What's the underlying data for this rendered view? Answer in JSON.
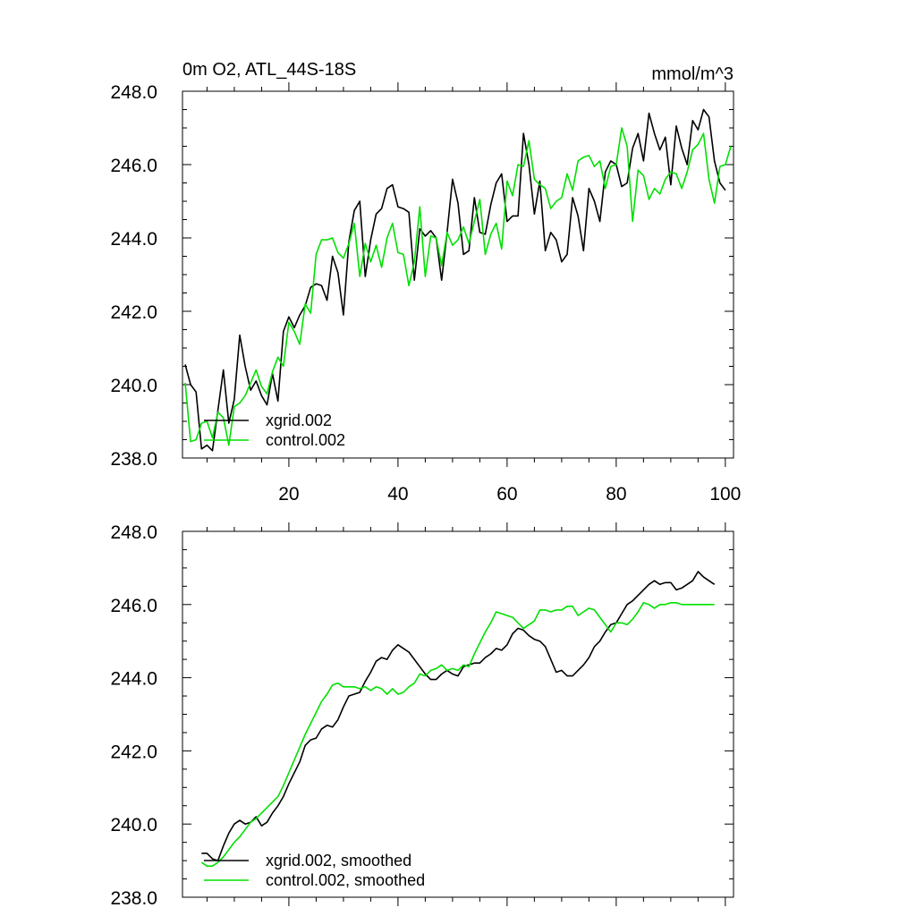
{
  "chart_data": [
    {
      "type": "line",
      "title_left": "0m O2, ATL_44S-18S",
      "title_right": "mmol/m^3",
      "xlim": [
        0.5,
        101.5
      ],
      "ylim": [
        238.0,
        248.0
      ],
      "x_ticks": [
        20,
        40,
        60,
        80,
        100
      ],
      "x_tick_labels": [
        "20",
        "40",
        "60",
        "80",
        "100"
      ],
      "y_ticks": [
        238.0,
        240.0,
        242.0,
        244.0,
        246.0,
        248.0
      ],
      "y_tick_labels": [
        "238.0",
        "240.0",
        "242.0",
        "244.0",
        "246.0",
        "248.0"
      ],
      "legend_position": "bottom-left",
      "series": [
        {
          "name": "xgrid.002",
          "color": "#000000",
          "x_start": 1,
          "values": [
            240.55,
            240.0,
            239.8,
            238.25,
            238.35,
            238.2,
            239.3,
            240.4,
            238.95,
            239.6,
            241.35,
            240.5,
            239.85,
            240.1,
            239.7,
            239.45,
            240.3,
            239.55,
            241.45,
            241.85,
            241.55,
            241.9,
            242.15,
            242.65,
            242.75,
            242.7,
            242.3,
            243.5,
            243.05,
            241.9,
            243.9,
            244.75,
            245.0,
            242.95,
            243.95,
            244.65,
            244.8,
            245.35,
            245.45,
            244.85,
            244.8,
            244.7,
            242.85,
            244.25,
            244.05,
            244.2,
            244.0,
            242.85,
            244.15,
            245.6,
            244.95,
            243.55,
            243.65,
            245.1,
            244.15,
            244.1,
            244.9,
            245.5,
            245.75,
            244.45,
            244.6,
            244.6,
            246.85,
            246.0,
            244.65,
            245.55,
            243.65,
            244.15,
            243.95,
            243.35,
            243.55,
            245.1,
            244.6,
            243.65,
            245.35,
            245.0,
            244.45,
            245.8,
            246.1,
            246.0,
            245.4,
            245.5,
            246.45,
            246.85,
            246.1,
            247.4,
            246.85,
            246.4,
            246.75,
            245.45,
            247.05,
            246.45,
            246.0,
            247.2,
            246.95,
            247.5,
            247.3,
            246.1,
            245.5,
            245.3
          ]
        },
        {
          "name": "control.002",
          "color": "#00e000",
          "x_start": 1,
          "values": [
            240.05,
            238.45,
            238.5,
            238.95,
            239.0,
            238.55,
            239.25,
            239.1,
            238.35,
            239.4,
            239.5,
            239.7,
            240.05,
            240.4,
            239.95,
            239.75,
            240.35,
            240.75,
            240.5,
            241.7,
            241.45,
            241.1,
            242.2,
            241.95,
            243.55,
            243.95,
            243.95,
            244.0,
            243.6,
            243.45,
            243.85,
            244.4,
            242.95,
            243.85,
            243.35,
            243.8,
            243.2,
            244.0,
            244.4,
            243.6,
            243.55,
            242.7,
            243.35,
            244.85,
            242.95,
            244.05,
            244.0,
            243.25,
            244.15,
            243.8,
            243.95,
            244.3,
            243.85,
            244.45,
            245.05,
            243.55,
            244.1,
            244.4,
            243.7,
            245.55,
            245.15,
            246.0,
            245.95,
            246.65,
            245.6,
            245.45,
            245.35,
            244.8,
            245.0,
            245.1,
            245.75,
            245.3,
            246.1,
            246.2,
            246.25,
            245.95,
            246.1,
            245.35,
            245.95,
            246.0,
            247.0,
            246.5,
            244.45,
            245.85,
            245.7,
            245.05,
            245.35,
            245.2,
            245.6,
            245.8,
            245.75,
            245.35,
            245.8,
            246.4,
            246.55,
            246.85,
            245.6,
            244.95,
            245.95,
            246.0,
            246.5
          ]
        }
      ]
    },
    {
      "type": "line",
      "xlim": [
        0.5,
        101.5
      ],
      "ylim": [
        238.0,
        248.0
      ],
      "x_ticks": [
        20,
        40,
        60,
        80,
        100
      ],
      "y_ticks": [
        238.0,
        240.0,
        242.0,
        244.0,
        246.0,
        248.0
      ],
      "y_tick_labels": [
        "238.0",
        "240.0",
        "242.0",
        "244.0",
        "246.0",
        "248.0"
      ],
      "legend_position": "bottom-left",
      "series": [
        {
          "name": "xgrid.002, smoothed",
          "color": "#000000",
          "x_start": 4,
          "values": [
            239.2,
            239.2,
            239.05,
            239.0,
            239.4,
            239.75,
            240.0,
            240.1,
            240.0,
            240.05,
            240.2,
            239.95,
            240.05,
            240.3,
            240.5,
            240.75,
            241.1,
            241.4,
            241.7,
            242.15,
            242.3,
            242.35,
            242.6,
            242.7,
            242.65,
            242.85,
            243.2,
            243.5,
            243.55,
            243.6,
            243.9,
            244.15,
            244.45,
            244.55,
            244.5,
            244.75,
            244.9,
            244.8,
            244.7,
            244.5,
            244.3,
            244.1,
            243.95,
            243.95,
            244.1,
            244.2,
            244.1,
            244.05,
            244.3,
            244.35,
            244.4,
            244.4,
            244.55,
            244.65,
            244.8,
            244.75,
            244.9,
            245.2,
            245.35,
            245.3,
            245.15,
            245.05,
            245.0,
            244.85,
            244.5,
            244.15,
            244.2,
            244.05,
            244.05,
            244.2,
            244.35,
            244.55,
            244.85,
            245.0,
            245.25,
            245.45,
            245.5,
            245.75,
            246.0,
            246.1,
            246.25,
            246.4,
            246.55,
            246.65,
            246.55,
            246.6,
            246.6,
            246.4,
            246.45,
            246.55,
            246.65,
            246.9,
            246.75,
            246.65,
            246.55
          ]
        },
        {
          "name": "control.002, smoothed",
          "color": "#00e000",
          "x_start": 4,
          "values": [
            238.95,
            238.85,
            238.85,
            238.95,
            239.1,
            239.3,
            239.5,
            239.65,
            239.85,
            240.05,
            240.15,
            240.3,
            240.45,
            240.6,
            240.75,
            241.05,
            241.4,
            241.75,
            242.1,
            242.45,
            242.75,
            243.05,
            243.35,
            243.55,
            243.8,
            243.85,
            243.75,
            243.75,
            243.75,
            243.7,
            243.75,
            243.65,
            243.75,
            243.7,
            243.55,
            243.7,
            243.55,
            243.6,
            243.75,
            243.85,
            244.1,
            244.05,
            244.2,
            244.25,
            244.35,
            244.2,
            244.25,
            244.2,
            244.35,
            244.3,
            244.65,
            244.95,
            245.25,
            245.5,
            245.8,
            245.75,
            245.7,
            245.65,
            245.5,
            245.35,
            245.45,
            245.55,
            245.85,
            245.85,
            245.8,
            245.85,
            245.85,
            245.95,
            245.95,
            245.7,
            245.8,
            245.9,
            245.85,
            245.65,
            245.45,
            245.25,
            245.5,
            245.5,
            245.45,
            245.6,
            245.8,
            246.05,
            246.0,
            245.9,
            246.0,
            246.0,
            246.05,
            246.05,
            246.0,
            246.0,
            246.0,
            246.0,
            246.0,
            246.0,
            246.0
          ]
        }
      ]
    }
  ]
}
